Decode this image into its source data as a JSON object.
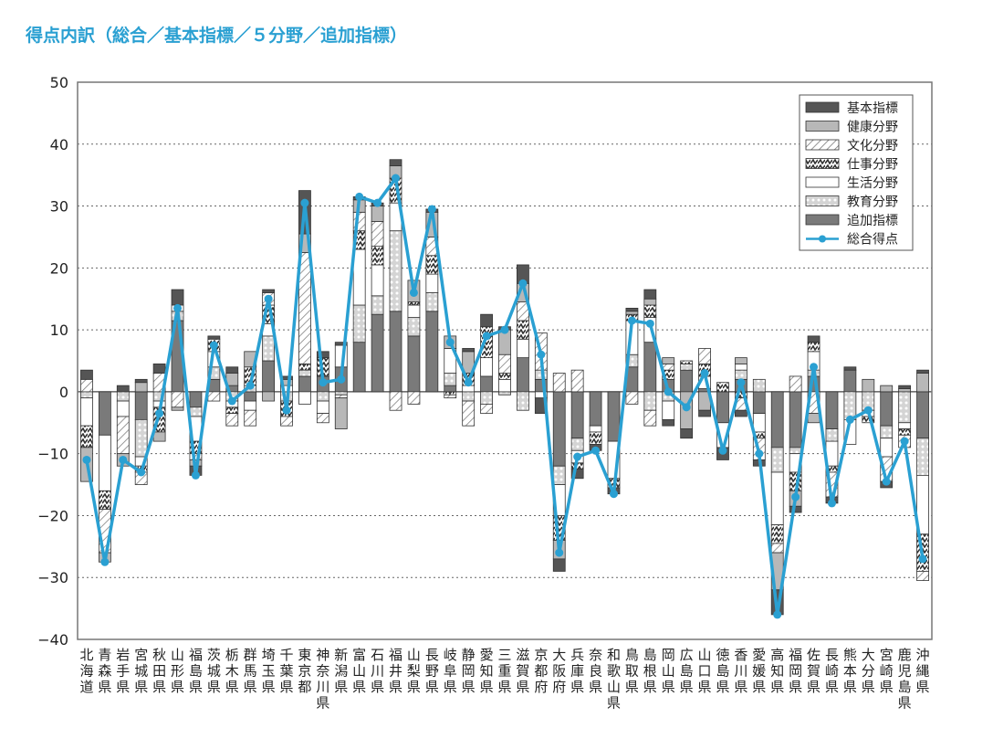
{
  "chart_data": {
    "type": "bar",
    "stacked": true,
    "title": "得点内訳（総合／基本指標／５分野／追加指標）",
    "ylim": [
      -40,
      50
    ],
    "yticks": [
      50,
      40,
      30,
      20,
      10,
      0,
      -10,
      -20,
      -30,
      -40
    ],
    "ytick_labels": [
      "50",
      "40",
      "30",
      "20",
      "10",
      "0",
      "−10",
      "−20",
      "−30",
      "−40"
    ],
    "grid": "horizontal dotted",
    "legend_position": "top-right",
    "categories": [
      "北海道",
      "青森県",
      "岩手県",
      "宮城県",
      "秋田県",
      "山形県",
      "福島県",
      "茨城県",
      "栃木県",
      "群馬県",
      "埼玉県",
      "千葉県",
      "東京都",
      "神奈川県",
      "新潟県",
      "富山県",
      "石川県",
      "福井県",
      "山梨県",
      "長野県",
      "岐阜県",
      "静岡県",
      "愛知県",
      "三重県",
      "滋賀県",
      "京都府",
      "大阪府",
      "兵庫県",
      "奈良県",
      "和歌山県",
      "鳥取県",
      "島根県",
      "岡山県",
      "広島県",
      "山口県",
      "徳島県",
      "香川県",
      "愛媛県",
      "高知県",
      "福岡県",
      "佐賀県",
      "長崎県",
      "熊本県",
      "大分県",
      "宮崎県",
      "鹿児島県",
      "沖縄県"
    ],
    "series": [
      {
        "name": "基本指標",
        "color": "#555555",
        "pattern": "solid",
        "values": [
          1.5,
          0,
          1,
          0.5,
          1.5,
          2.5,
          -1.5,
          0.5,
          1,
          0,
          0.5,
          0.5,
          7,
          1,
          0.5,
          0.5,
          0.5,
          1,
          0,
          0.5,
          0,
          0.5,
          2,
          0.5,
          3,
          -2.5,
          -2,
          -1.5,
          -1,
          -1,
          0.5,
          1.5,
          -1,
          -1.5,
          -1,
          -2,
          -1,
          -1,
          -4,
          -1,
          1,
          -1,
          0.5,
          0,
          -1,
          0.5,
          0.5
        ]
      },
      {
        "name": "健康分野",
        "color": "#b8b8b8",
        "pattern": "solid",
        "values": [
          -5.5,
          -1.5,
          -2,
          1.5,
          -1.5,
          -0.5,
          -1,
          0,
          2,
          2.5,
          -1.5,
          1,
          3,
          0,
          -5,
          2,
          2.5,
          2,
          3.5,
          4,
          2,
          3.5,
          0,
          4,
          3,
          0,
          -3,
          0,
          0,
          0,
          0.5,
          1,
          1,
          -6,
          -3,
          0,
          1,
          0,
          -6,
          -2.5,
          -1.5,
          0,
          0,
          2,
          1,
          0.5,
          3
        ]
      },
      {
        "name": "文化分野",
        "color": "#ffffff",
        "pattern": "hatch",
        "values": [
          2,
          -7,
          -6,
          -2,
          3,
          -2.5,
          -1,
          -1.5,
          -2,
          -2.5,
          2,
          -1.5,
          18,
          -1.5,
          -0.5,
          3,
          4,
          -3,
          -2,
          3,
          -0.5,
          -4,
          -1.5,
          3,
          3,
          6,
          3,
          3.5,
          0,
          0,
          -2,
          -2.5,
          1,
          0,
          2.5,
          0,
          -2,
          -3.5,
          -1.5,
          2.5,
          -3.5,
          -4,
          0,
          0,
          -4,
          -2,
          -1.5
        ]
      },
      {
        "name": "仕事分野",
        "color": "#ffffff",
        "pattern": "zigzag",
        "values": [
          -3.5,
          -3,
          0,
          -1,
          -4,
          0,
          -2,
          2,
          -1,
          3,
          3,
          -2.5,
          1,
          3,
          0,
          3,
          3,
          4,
          0.5,
          3,
          -0.5,
          2,
          5,
          1,
          3,
          0,
          -4,
          -1,
          -2,
          -1.5,
          1,
          2,
          1.5,
          0.5,
          2,
          1.5,
          -1,
          -1,
          -3,
          -3,
          1.5,
          -1,
          0,
          -1,
          0,
          -1,
          -6
        ]
      },
      {
        "name": "生活分野",
        "color": "#ffffff",
        "pattern": "solid",
        "values": [
          -4.5,
          -9,
          -2.5,
          -1.5,
          -1,
          1,
          -4,
          2.5,
          -1,
          -1.5,
          2,
          1,
          -2,
          -2,
          3.5,
          9,
          5,
          4.5,
          2,
          3,
          4,
          1,
          3,
          2,
          3,
          -1,
          -5,
          -2,
          -1,
          -6,
          5.5,
          4,
          -3,
          0,
          2,
          -4,
          1,
          -3,
          -8.5,
          -3,
          3,
          -4,
          -4,
          -1,
          -3,
          -1,
          -9.5
        ]
      },
      {
        "name": "教育分野",
        "color": "#d8d8d8",
        "pattern": "dots",
        "values": [
          -1,
          0,
          -1.5,
          -6,
          -1.5,
          1.5,
          -1.5,
          2,
          -1.5,
          1,
          4,
          -1.5,
          1,
          -1.5,
          -0.5,
          6,
          3,
          13,
          3,
          3,
          2,
          -1.5,
          -2,
          -0.5,
          -3,
          1.5,
          -3,
          -2,
          0,
          0,
          2,
          -3,
          -1.5,
          1,
          0,
          0,
          1.5,
          2,
          -4,
          -1,
          1,
          -2,
          -4.5,
          -3,
          -2,
          -5,
          -6
        ]
      },
      {
        "name": "追加指標",
        "color": "#7a7a7a",
        "pattern": "solid",
        "values": [
          0,
          -7,
          0,
          -4.5,
          0,
          11.5,
          -2.5,
          2,
          1,
          -1.5,
          5,
          0,
          2.5,
          2.5,
          4,
          8,
          12.5,
          13,
          9,
          13,
          1,
          0,
          2.5,
          0,
          5.5,
          2,
          -12,
          -7.5,
          -5.5,
          -8,
          4,
          8,
          2,
          3.5,
          0.5,
          -5,
          2,
          -3.5,
          -9,
          -9,
          2.5,
          -6,
          3.5,
          0,
          -5.5,
          0,
          -7.5
        ]
      }
    ],
    "line": {
      "name": "総合得点",
      "color": "#2aa0d2",
      "values": [
        -11,
        -27.5,
        -11,
        -13,
        -3.5,
        13.5,
        -13.5,
        7.5,
        -1.5,
        1,
        15,
        -3,
        30.5,
        1.5,
        2,
        31.5,
        30.5,
        34.5,
        16,
        29.5,
        8,
        1.5,
        9,
        10,
        17.5,
        6,
        -26,
        -10.5,
        -9.5,
        -16.5,
        11.5,
        11,
        0,
        -2.5,
        3,
        -9.5,
        1.5,
        -10,
        -36,
        -17,
        4,
        -18,
        -4.5,
        -3,
        -14.5,
        -8,
        -27
      ]
    }
  }
}
